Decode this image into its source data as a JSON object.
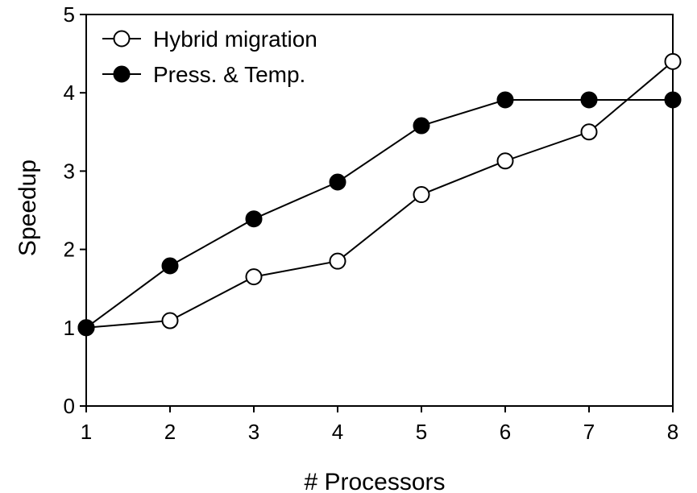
{
  "chart_data": {
    "type": "line",
    "title": "",
    "xlabel": "# Processors",
    "ylabel": "Speedup",
    "xlim": [
      1,
      8
    ],
    "ylim": [
      0,
      5
    ],
    "x": [
      1,
      2,
      3,
      4,
      5,
      6,
      7,
      8
    ],
    "xticks": [
      "1",
      "2",
      "3",
      "4",
      "5",
      "6",
      "7",
      "8"
    ],
    "yticks": [
      "0",
      "1",
      "2",
      "3",
      "4",
      "5"
    ],
    "grid": false,
    "legend_position": "top-left",
    "series": [
      {
        "name": "Hybrid migration",
        "marker": "open-circle",
        "color": "#000000",
        "values": [
          1.0,
          1.09,
          1.65,
          1.85,
          2.7,
          3.13,
          3.5,
          4.4
        ]
      },
      {
        "name": "Press. & Temp.",
        "marker": "filled-circle",
        "color": "#000000",
        "values": [
          1.0,
          1.79,
          2.39,
          2.86,
          3.58,
          3.91,
          3.91,
          3.91
        ]
      }
    ]
  }
}
